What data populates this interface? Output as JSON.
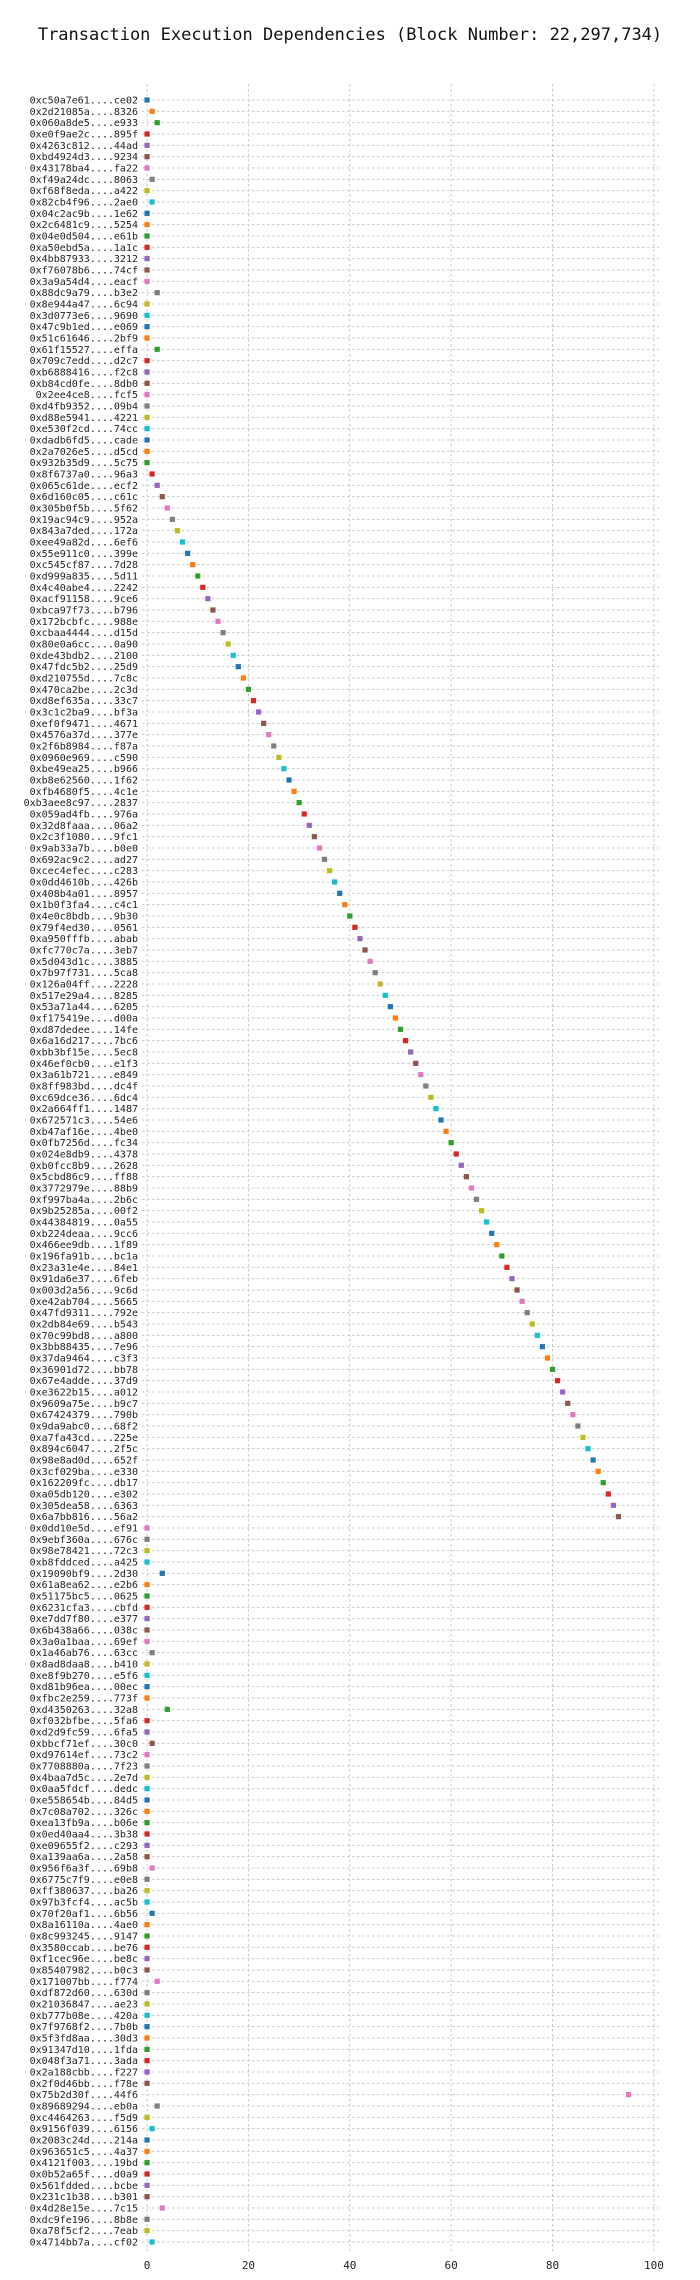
{
  "chart_data": {
    "type": "scatter",
    "title": "Transaction Execution Dependencies (Block Number: 22,297,734)",
    "xlabel": "",
    "ylabel": "",
    "xlim": [
      -1,
      101
    ],
    "xticks": [
      0,
      20,
      40,
      60,
      80,
      100
    ],
    "grid": true,
    "marker": "square",
    "palette": [
      "#1f77b4",
      "#ff7f0e",
      "#2ca02c",
      "#d62728",
      "#9467bd",
      "#8c564b",
      "#e377c2",
      "#7f7f7f",
      "#bcbd22",
      "#17becf"
    ],
    "points": [
      {
        "tx": "0xc50a7e61....ce02",
        "x": 0,
        "c": "#1f77b4"
      },
      {
        "tx": "0x2d21085a....8326",
        "x": 1,
        "c": "#ff7f0e"
      },
      {
        "tx": "0x060a8de5....e933",
        "x": 2,
        "c": "#2ca02c"
      },
      {
        "tx": "0xe0f9ae2c....895f",
        "x": 0,
        "c": "#d62728"
      },
      {
        "tx": "0x4263c812....44ad",
        "x": 0,
        "c": "#9467bd"
      },
      {
        "tx": "0xbd4924d3....9234",
        "x": 0,
        "c": "#8c564b"
      },
      {
        "tx": "0x43178ba4....fa22",
        "x": 0,
        "c": "#e377c2"
      },
      {
        "tx": "0xf49a24dc....8063",
        "x": 1,
        "c": "#7f7f7f"
      },
      {
        "tx": "0xf68f8eda....a422",
        "x": 0,
        "c": "#bcbd22"
      },
      {
        "tx": "0x82cb4f96....2ae0",
        "x": 1,
        "c": "#17becf"
      },
      {
        "tx": "0x04c2ac9b....1e62",
        "x": 0,
        "c": "#1f77b4"
      },
      {
        "tx": "0x2c6481c9....5254",
        "x": 0,
        "c": "#ff7f0e"
      },
      {
        "tx": "0x04e0d504....e61b",
        "x": 0,
        "c": "#2ca02c"
      },
      {
        "tx": "0xa50ebd5a....1a1c",
        "x": 0,
        "c": "#d62728"
      },
      {
        "tx": "0x4bb87933....3212",
        "x": 0,
        "c": "#9467bd"
      },
      {
        "tx": "0xf76078b6....74cf",
        "x": 0,
        "c": "#8c564b"
      },
      {
        "tx": "0x3a9a54d4....eacf",
        "x": 0,
        "c": "#e377c2"
      },
      {
        "tx": "0x88dc9a79....b3e2",
        "x": 2,
        "c": "#7f7f7f"
      },
      {
        "tx": "0x8e944a47....6c94",
        "x": 0,
        "c": "#bcbd22"
      },
      {
        "tx": "0x3d0773e6....9690",
        "x": 0,
        "c": "#17becf"
      },
      {
        "tx": "0x47c9b1ed....e069",
        "x": 0,
        "c": "#1f77b4"
      },
      {
        "tx": "0x51c61646....2bf9",
        "x": 0,
        "c": "#ff7f0e"
      },
      {
        "tx": "0x61f15527....effa",
        "x": 2,
        "c": "#2ca02c"
      },
      {
        "tx": "0x709c7edd....d2c7",
        "x": 0,
        "c": "#d62728"
      },
      {
        "tx": "0xb6888416....f2c8",
        "x": 0,
        "c": "#9467bd"
      },
      {
        "tx": "0xb84cd0fe....8db0",
        "x": 0,
        "c": "#8c564b"
      },
      {
        "tx": "0x2ee4ce8....fcf5",
        "x": 0,
        "c": "#e377c2"
      },
      {
        "tx": "0xd4fb9352....09b4",
        "x": 0,
        "c": "#7f7f7f"
      },
      {
        "tx": "0xd88e5941....4221",
        "x": 0,
        "c": "#bcbd22"
      },
      {
        "tx": "0xe530f2cd....74cc",
        "x": 0,
        "c": "#17becf"
      },
      {
        "tx": "0xdadb6fd5....cade",
        "x": 0,
        "c": "#1f77b4"
      },
      {
        "tx": "0x2a7026e5....d5cd",
        "x": 0,
        "c": "#ff7f0e"
      },
      {
        "tx": "0x932b35d9....5c75",
        "x": 0,
        "c": "#2ca02c"
      },
      {
        "tx": "0x8f6737a0....96a3",
        "x": 1,
        "c": "#d62728"
      },
      {
        "tx": "0x065c61de....ecf2",
        "x": 2,
        "c": "#9467bd"
      },
      {
        "tx": "0x6d160c05....c61c",
        "x": 3,
        "c": "#8c564b"
      },
      {
        "tx": "0x305b0f5b....5f62",
        "x": 4,
        "c": "#e377c2"
      },
      {
        "tx": "0x19ac94c9....952a",
        "x": 5,
        "c": "#7f7f7f"
      },
      {
        "tx": "0x843a7ded....172a",
        "x": 6,
        "c": "#bcbd22"
      },
      {
        "tx": "0xee49a82d....6ef6",
        "x": 7,
        "c": "#17becf"
      },
      {
        "tx": "0x55e911c0....399e",
        "x": 8,
        "c": "#1f77b4"
      },
      {
        "tx": "0xc545cf87....7d28",
        "x": 9,
        "c": "#ff7f0e"
      },
      {
        "tx": "0xd999a835....5d11",
        "x": 10,
        "c": "#2ca02c"
      },
      {
        "tx": "0x4c40abe4....2242",
        "x": 11,
        "c": "#d62728"
      },
      {
        "tx": "0xacf91158....9ce6",
        "x": 12,
        "c": "#9467bd"
      },
      {
        "tx": "0xbca97f73....b796",
        "x": 13,
        "c": "#8c564b"
      },
      {
        "tx": "0x172bcbfc....988e",
        "x": 14,
        "c": "#e377c2"
      },
      {
        "tx": "0xcbaa4444....d15d",
        "x": 15,
        "c": "#7f7f7f"
      },
      {
        "tx": "0x80e0a6cc....0a90",
        "x": 16,
        "c": "#bcbd22"
      },
      {
        "tx": "0xde43bdb2....2100",
        "x": 17,
        "c": "#17becf"
      },
      {
        "tx": "0x47fdc5b2....25d9",
        "x": 18,
        "c": "#1f77b4"
      },
      {
        "tx": "0xd210755d....7c8c",
        "x": 19,
        "c": "#ff7f0e"
      },
      {
        "tx": "0x470ca2be....2c3d",
        "x": 20,
        "c": "#2ca02c"
      },
      {
        "tx": "0xd8ef635a....33c7",
        "x": 21,
        "c": "#d62728"
      },
      {
        "tx": "0x3c1c2ba9....bf3a",
        "x": 22,
        "c": "#9467bd"
      },
      {
        "tx": "0xef0f9471....4671",
        "x": 23,
        "c": "#8c564b"
      },
      {
        "tx": "0x4576a37d....377e",
        "x": 24,
        "c": "#e377c2"
      },
      {
        "tx": "0x2f6b8984....f87a",
        "x": 25,
        "c": "#7f7f7f"
      },
      {
        "tx": "0x0960e969....c590",
        "x": 26,
        "c": "#bcbd22"
      },
      {
        "tx": "0xbe49ea25....b966",
        "x": 27,
        "c": "#17becf"
      },
      {
        "tx": "0xb8e62560....1f62",
        "x": 28,
        "c": "#1f77b4"
      },
      {
        "tx": "0xfb4680f5....4c1e",
        "x": 29,
        "c": "#ff7f0e"
      },
      {
        "tx": "0xb3aee8c97....2837",
        "x": 30,
        "c": "#2ca02c"
      },
      {
        "tx": "0x059ad4fb....976a",
        "x": 31,
        "c": "#d62728"
      },
      {
        "tx": "0x32d8faaa....06a2",
        "x": 32,
        "c": "#9467bd"
      },
      {
        "tx": "0x2c3f1080....9fc1",
        "x": 33,
        "c": "#8c564b"
      },
      {
        "tx": "0x9ab33a7b....b0e0",
        "x": 34,
        "c": "#e377c2"
      },
      {
        "tx": "0x692ac9c2....ad27",
        "x": 35,
        "c": "#7f7f7f"
      },
      {
        "tx": "0xcec4efec....c283",
        "x": 36,
        "c": "#bcbd22"
      },
      {
        "tx": "0x0dd4610b....426b",
        "x": 37,
        "c": "#17becf"
      },
      {
        "tx": "0x408b4a01....8957",
        "x": 38,
        "c": "#1f77b4"
      },
      {
        "tx": "0x1b0f3fa4....c4c1",
        "x": 39,
        "c": "#ff7f0e"
      },
      {
        "tx": "0x4e0c8bdb....9b30",
        "x": 40,
        "c": "#2ca02c"
      },
      {
        "tx": "0x79f4ed30....0561",
        "x": 41,
        "c": "#d62728"
      },
      {
        "tx": "0xa950fffb....abab",
        "x": 42,
        "c": "#9467bd"
      },
      {
        "tx": "0xfc770c7a....3eb7",
        "x": 43,
        "c": "#8c564b"
      },
      {
        "tx": "0x5d043d1c....3885",
        "x": 44,
        "c": "#e377c2"
      },
      {
        "tx": "0x7b97f731....5ca8",
        "x": 45,
        "c": "#7f7f7f"
      },
      {
        "tx": "0x126a04ff....2228",
        "x": 46,
        "c": "#bcbd22"
      },
      {
        "tx": "0x517e29a4....8285",
        "x": 47,
        "c": "#17becf"
      },
      {
        "tx": "0x53a71a44....6205",
        "x": 48,
        "c": "#1f77b4"
      },
      {
        "tx": "0xf175419e....d00a",
        "x": 49,
        "c": "#ff7f0e"
      },
      {
        "tx": "0xd87dedee....14fe",
        "x": 50,
        "c": "#2ca02c"
      },
      {
        "tx": "0x6a16d217....7bc6",
        "x": 51,
        "c": "#d62728"
      },
      {
        "tx": "0xbb3bf15e....5ec8",
        "x": 52,
        "c": "#9467bd"
      },
      {
        "tx": "0x46ef0cb0....e1f3",
        "x": 53,
        "c": "#8c564b"
      },
      {
        "tx": "0x3a61b721....e849",
        "x": 54,
        "c": "#e377c2"
      },
      {
        "tx": "0x8ff983bd....dc4f",
        "x": 55,
        "c": "#7f7f7f"
      },
      {
        "tx": "0xc69dce36....6dc4",
        "x": 56,
        "c": "#bcbd22"
      },
      {
        "tx": "0x2a664ff1....1487",
        "x": 57,
        "c": "#17becf"
      },
      {
        "tx": "0x672571c3....54e6",
        "x": 58,
        "c": "#1f77b4"
      },
      {
        "tx": "0xb47af16e....4be0",
        "x": 59,
        "c": "#ff7f0e"
      },
      {
        "tx": "0x0fb7256d....fc34",
        "x": 60,
        "c": "#2ca02c"
      },
      {
        "tx": "0x024e8db9....4378",
        "x": 61,
        "c": "#d62728"
      },
      {
        "tx": "0xb0fcc8b9....2628",
        "x": 62,
        "c": "#9467bd"
      },
      {
        "tx": "0x5cbd86c9....ff88",
        "x": 63,
        "c": "#8c564b"
      },
      {
        "tx": "0x3772979e....88b9",
        "x": 64,
        "c": "#e377c2"
      },
      {
        "tx": "0xf997ba4a....2b6c",
        "x": 65,
        "c": "#7f7f7f"
      },
      {
        "tx": "0x9b25285a....00f2",
        "x": 66,
        "c": "#bcbd22"
      },
      {
        "tx": "0x44384819....0a55",
        "x": 67,
        "c": "#17becf"
      },
      {
        "tx": "0xb224deaa....9cc6",
        "x": 68,
        "c": "#1f77b4"
      },
      {
        "tx": "0x466ee9db....1f89",
        "x": 69,
        "c": "#ff7f0e"
      },
      {
        "tx": "0x196fa91b....bc1a",
        "x": 70,
        "c": "#2ca02c"
      },
      {
        "tx": "0x23a31e4e....84e1",
        "x": 71,
        "c": "#d62728"
      },
      {
        "tx": "0x91da6e37....6feb",
        "x": 72,
        "c": "#9467bd"
      },
      {
        "tx": "0x003d2a56....9c6d",
        "x": 73,
        "c": "#8c564b"
      },
      {
        "tx": "0xe42ab704....5665",
        "x": 74,
        "c": "#e377c2"
      },
      {
        "tx": "0x47fd9311....792e",
        "x": 75,
        "c": "#7f7f7f"
      },
      {
        "tx": "0x2db84e69....b543",
        "x": 76,
        "c": "#bcbd22"
      },
      {
        "tx": "0x70c99bd8....a800",
        "x": 77,
        "c": "#17becf"
      },
      {
        "tx": "0x3bb88435....7e96",
        "x": 78,
        "c": "#1f77b4"
      },
      {
        "tx": "0x37da9464....c3f3",
        "x": 79,
        "c": "#ff7f0e"
      },
      {
        "tx": "0x36901d72....bb78",
        "x": 80,
        "c": "#2ca02c"
      },
      {
        "tx": "0x67e4adde....37d9",
        "x": 81,
        "c": "#d62728"
      },
      {
        "tx": "0xe3622b15....a012",
        "x": 82,
        "c": "#9467bd"
      },
      {
        "tx": "0x9609a75e....b9c7",
        "x": 83,
        "c": "#8c564b"
      },
      {
        "tx": "0x67424379....790b",
        "x": 84,
        "c": "#e377c2"
      },
      {
        "tx": "0x9da9abc0....68f2",
        "x": 85,
        "c": "#7f7f7f"
      },
      {
        "tx": "0xa7fa43cd....225e",
        "x": 86,
        "c": "#bcbd22"
      },
      {
        "tx": "0x894c6047....2f5c",
        "x": 87,
        "c": "#17becf"
      },
      {
        "tx": "0x98e8ad0d....652f",
        "x": 88,
        "c": "#1f77b4"
      },
      {
        "tx": "0x3cf029ba....e330",
        "x": 89,
        "c": "#ff7f0e"
      },
      {
        "tx": "0x162209fc....db17",
        "x": 90,
        "c": "#2ca02c"
      },
      {
        "tx": "0xa05db120....e302",
        "x": 91,
        "c": "#d62728"
      },
      {
        "tx": "0x305dea58....6363",
        "x": 92,
        "c": "#9467bd"
      },
      {
        "tx": "0x6a7bb816....56a2",
        "x": 93,
        "c": "#8c564b"
      },
      {
        "tx": "0x0dd10e5d....ef91",
        "x": 0,
        "c": "#e377c2"
      },
      {
        "tx": "0x9ebf360a....676c",
        "x": 0,
        "c": "#7f7f7f"
      },
      {
        "tx": "0x98e78421....72c3",
        "x": 0,
        "c": "#bcbd22"
      },
      {
        "tx": "0xb8fddced....a425",
        "x": 0,
        "c": "#17becf"
      },
      {
        "tx": "0x19090bf9....2d30",
        "x": 3,
        "c": "#1f77b4"
      },
      {
        "tx": "0x61a8ea62....e2b6",
        "x": 0,
        "c": "#ff7f0e"
      },
      {
        "tx": "0x51175bc5....0625",
        "x": 0,
        "c": "#2ca02c"
      },
      {
        "tx": "0x6231cfa3....cbfd",
        "x": 0,
        "c": "#d62728"
      },
      {
        "tx": "0xe7dd7f80....e377",
        "x": 0,
        "c": "#9467bd"
      },
      {
        "tx": "0x6b438a66....038c",
        "x": 0,
        "c": "#8c564b"
      },
      {
        "tx": "0x3a0a1baa....69ef",
        "x": 0,
        "c": "#e377c2"
      },
      {
        "tx": "0x1a46ab76....63cc",
        "x": 1,
        "c": "#7f7f7f"
      },
      {
        "tx": "0x8ad8daa8....b410",
        "x": 0,
        "c": "#bcbd22"
      },
      {
        "tx": "0xe8f9b270....e5f6",
        "x": 0,
        "c": "#17becf"
      },
      {
        "tx": "0xd81b96ea....00ec",
        "x": 0,
        "c": "#1f77b4"
      },
      {
        "tx": "0xfbc2e259....773f",
        "x": 0,
        "c": "#ff7f0e"
      },
      {
        "tx": "0xd4350263....32a8",
        "x": 4,
        "c": "#2ca02c"
      },
      {
        "tx": "0xf032bfbe....5fa6",
        "x": 0,
        "c": "#d62728"
      },
      {
        "tx": "0xd2d9fc59....6fa5",
        "x": 0,
        "c": "#9467bd"
      },
      {
        "tx": "0xbbcf71ef....30c0",
        "x": 1,
        "c": "#8c564b"
      },
      {
        "tx": "0xd97614ef....73c2",
        "x": 0,
        "c": "#e377c2"
      },
      {
        "tx": "0x7708880a....7f23",
        "x": 0,
        "c": "#7f7f7f"
      },
      {
        "tx": "0x4baa7d5c....2e7d",
        "x": 0,
        "c": "#bcbd22"
      },
      {
        "tx": "0x0aa5fdcf....dedc",
        "x": 0,
        "c": "#17becf"
      },
      {
        "tx": "0xe558654b....84d5",
        "x": 0,
        "c": "#1f77b4"
      },
      {
        "tx": "0x7c08a702....326c",
        "x": 0,
        "c": "#ff7f0e"
      },
      {
        "tx": "0xea13fb9a....b06e",
        "x": 0,
        "c": "#2ca02c"
      },
      {
        "tx": "0x0ed40aa4....3b38",
        "x": 0,
        "c": "#d62728"
      },
      {
        "tx": "0xe09655f2....c293",
        "x": 0,
        "c": "#9467bd"
      },
      {
        "tx": "0xa139aa6a....2a58",
        "x": 0,
        "c": "#8c564b"
      },
      {
        "tx": "0x956f6a3f....69b8",
        "x": 1,
        "c": "#e377c2"
      },
      {
        "tx": "0x6775c7f9....e0e8",
        "x": 0,
        "c": "#7f7f7f"
      },
      {
        "tx": "0xff380637....ba26",
        "x": 0,
        "c": "#bcbd22"
      },
      {
        "tx": "0x97b3fcf4....ac5b",
        "x": 0,
        "c": "#17becf"
      },
      {
        "tx": "0x70f20af1....6b56",
        "x": 1,
        "c": "#1f77b4"
      },
      {
        "tx": "0x8a16110a....4ae0",
        "x": 0,
        "c": "#ff7f0e"
      },
      {
        "tx": "0x8c993245....9147",
        "x": 0,
        "c": "#2ca02c"
      },
      {
        "tx": "0x3580ccab....be76",
        "x": 0,
        "c": "#d62728"
      },
      {
        "tx": "0xf1cec96e....be8c",
        "x": 0,
        "c": "#9467bd"
      },
      {
        "tx": "0x85407982....b0c3",
        "x": 0,
        "c": "#8c564b"
      },
      {
        "tx": "0x171007bb....f774",
        "x": 2,
        "c": "#e377c2"
      },
      {
        "tx": "0xdf872d60....630d",
        "x": 0,
        "c": "#7f7f7f"
      },
      {
        "tx": "0x21036847....ae23",
        "x": 0,
        "c": "#bcbd22"
      },
      {
        "tx": "0xb777b08e....420a",
        "x": 0,
        "c": "#17becf"
      },
      {
        "tx": "0x7f9768f2....7b0b",
        "x": 0,
        "c": "#1f77b4"
      },
      {
        "tx": "0x5f3fd8aa....30d3",
        "x": 0,
        "c": "#ff7f0e"
      },
      {
        "tx": "0x91347d10....1fda",
        "x": 0,
        "c": "#2ca02c"
      },
      {
        "tx": "0x048f3a71....3ada",
        "x": 0,
        "c": "#d62728"
      },
      {
        "tx": "0x2a188cbb....f227",
        "x": 0,
        "c": "#9467bd"
      },
      {
        "tx": "0x2f0d46bb....f78e",
        "x": 0,
        "c": "#8c564b"
      },
      {
        "tx": "0x75b2d30f....44f6",
        "x": 95,
        "c": "#e377c2"
      },
      {
        "tx": "0x89689294....eb0a",
        "x": 2,
        "c": "#7f7f7f"
      },
      {
        "tx": "0xc4464263....f5d9",
        "x": 0,
        "c": "#bcbd22"
      },
      {
        "tx": "0x9156f039....6156",
        "x": 1,
        "c": "#17becf"
      },
      {
        "tx": "0x2083c24d....214a",
        "x": 0,
        "c": "#1f77b4"
      },
      {
        "tx": "0x963651c5....4a37",
        "x": 0,
        "c": "#ff7f0e"
      },
      {
        "tx": "0x4121f003....19bd",
        "x": 0,
        "c": "#2ca02c"
      },
      {
        "tx": "0x0b52a65f....d0a9",
        "x": 0,
        "c": "#d62728"
      },
      {
        "tx": "0x561fdded....bcbe",
        "x": 0,
        "c": "#9467bd"
      },
      {
        "tx": "0x231c1b38....b301",
        "x": 0,
        "c": "#8c564b"
      },
      {
        "tx": "0x4d28e15e....7c15",
        "x": 3,
        "c": "#e377c2"
      },
      {
        "tx": "0xdc9fe196....8b8e",
        "x": 0,
        "c": "#7f7f7f"
      },
      {
        "tx": "0xa78f5cf2....7eab",
        "x": 0,
        "c": "#bcbd22"
      },
      {
        "tx": "0x4714bb7a....cf02",
        "x": 1,
        "c": "#17becf"
      }
    ]
  }
}
